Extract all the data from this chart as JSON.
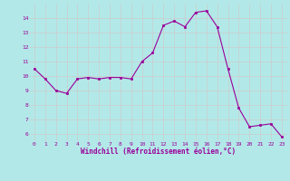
{
  "x": [
    0,
    1,
    2,
    3,
    4,
    5,
    6,
    7,
    8,
    9,
    10,
    11,
    12,
    13,
    14,
    15,
    16,
    17,
    18,
    19,
    20,
    21,
    22,
    23
  ],
  "y": [
    10.5,
    9.8,
    9.0,
    8.8,
    9.8,
    9.9,
    9.8,
    9.9,
    9.9,
    9.8,
    11.0,
    11.6,
    13.5,
    13.8,
    13.4,
    14.4,
    14.5,
    13.4,
    10.5,
    7.8,
    6.5,
    6.6,
    6.7,
    5.8
  ],
  "line_color": "#990099",
  "marker_color": "#990099",
  "bg_color": "#b3e8e8",
  "grid_color": "#cccccc",
  "xlabel": "Windchill (Refroidissement éolien,°C)",
  "xlabel_color": "#990099",
  "ylim": [
    5.5,
    15.0
  ],
  "xlim": [
    -0.5,
    23.5
  ],
  "yticks": [
    6,
    7,
    8,
    9,
    10,
    11,
    12,
    13,
    14
  ],
  "xticks": [
    0,
    1,
    2,
    3,
    4,
    5,
    6,
    7,
    8,
    9,
    10,
    11,
    12,
    13,
    14,
    15,
    16,
    17,
    18,
    19,
    20,
    21,
    22,
    23
  ],
  "tick_label_color": "#990099",
  "figsize": [
    3.2,
    2.0
  ],
  "dpi": 100
}
